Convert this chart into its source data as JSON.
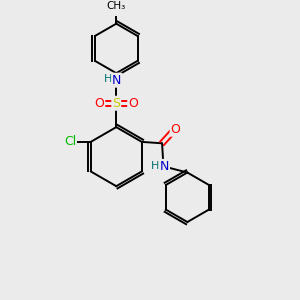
{
  "background_color": "#ebebeb",
  "bond_color": "#000000",
  "atom_colors": {
    "N": "#0000cc",
    "O": "#ff0000",
    "S": "#cccc00",
    "Cl": "#00bb00",
    "H": "#007070",
    "C": "#000000"
  },
  "figsize": [
    3.0,
    3.0
  ],
  "dpi": 100
}
